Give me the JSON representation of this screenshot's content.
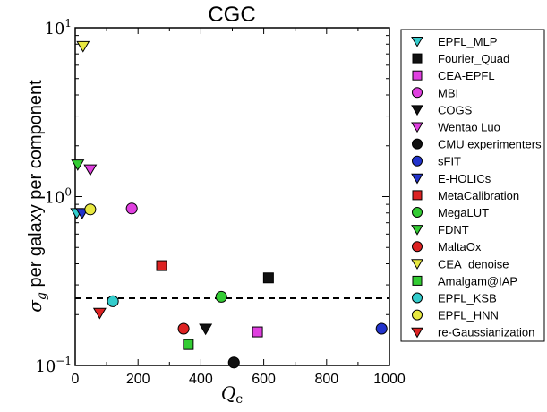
{
  "chart_data": {
    "type": "scatter",
    "title": "CGC",
    "xlabel_symbol": "Q",
    "xlabel_subscript": "c",
    "ylabel_symbol": "σ",
    "ylabel_subscript": "g",
    "ylabel_text": " per galaxy per component",
    "xlim": [
      0,
      1000
    ],
    "ylim": [
      0.1,
      10
    ],
    "yscale": "log",
    "x_ticks": [
      0,
      200,
      400,
      600,
      800,
      1000
    ],
    "x_tick_labels": [
      "0",
      "200",
      "400",
      "600",
      "800",
      "1000"
    ],
    "y_major_ticks": [
      0.1,
      1,
      10
    ],
    "y_tick_labels": [
      {
        "base": "10",
        "exp": "−1"
      },
      {
        "base": "10",
        "exp": "0"
      },
      {
        "base": "10",
        "exp": "1"
      }
    ],
    "reference_line": {
      "y": 0.25,
      "style": "dashed",
      "color": "#000000"
    },
    "grid": false,
    "legend_position": "outside-right",
    "series": [
      {
        "name": "EPFL_MLP",
        "marker": "triangle-down",
        "color": "#33cccc",
        "points": [
          [
            5,
            0.8
          ]
        ]
      },
      {
        "name": "Fourier_Quad",
        "marker": "square",
        "color": "#111111",
        "points": [
          [
            615,
            0.33
          ]
        ]
      },
      {
        "name": "CEA-EPFL",
        "marker": "square",
        "color": "#e040e0",
        "points": [
          [
            580,
            0.158
          ]
        ]
      },
      {
        "name": "MBI",
        "marker": "circle",
        "color": "#e040e0",
        "points": [
          [
            180,
            0.85
          ]
        ]
      },
      {
        "name": "COGS",
        "marker": "triangle-down",
        "color": "#111111",
        "points": [
          [
            415,
            0.165
          ]
        ]
      },
      {
        "name": "Wentao Luo",
        "marker": "triangle-down",
        "color": "#e040e0",
        "points": [
          [
            48,
            1.45
          ]
        ]
      },
      {
        "name": "CMU experimenters",
        "marker": "circle",
        "color": "#111111",
        "points": [
          [
            505,
            0.104
          ]
        ]
      },
      {
        "name": "sFIT",
        "marker": "circle",
        "color": "#2233cc",
        "points": [
          [
            975,
            0.165
          ]
        ]
      },
      {
        "name": "E-HOLICs",
        "marker": "triangle-down",
        "color": "#2233cc",
        "points": [
          [
            22,
            0.8
          ]
        ]
      },
      {
        "name": "MetaCalibration",
        "marker": "square",
        "color": "#dd2222",
        "points": [
          [
            275,
            0.39
          ]
        ]
      },
      {
        "name": "MegaLUT",
        "marker": "circle",
        "color": "#33cc33",
        "points": [
          [
            465,
            0.255
          ]
        ]
      },
      {
        "name": "FDNT",
        "marker": "triangle-down",
        "color": "#33cc33",
        "points": [
          [
            8,
            1.55
          ]
        ]
      },
      {
        "name": "MaltaOx",
        "marker": "circle",
        "color": "#dd2222",
        "points": [
          [
            345,
            0.165
          ]
        ]
      },
      {
        "name": "CEA_denoise",
        "marker": "triangle-down",
        "color": "#e8e840",
        "points": [
          [
            25,
            7.8
          ]
        ]
      },
      {
        "name": "Amalgam@IAP",
        "marker": "square",
        "color": "#33cc33",
        "points": [
          [
            360,
            0.133
          ]
        ]
      },
      {
        "name": "EPFL_KSB",
        "marker": "circle",
        "color": "#33cccc",
        "points": [
          [
            120,
            0.24
          ]
        ]
      },
      {
        "name": "EPFL_HNN",
        "marker": "circle",
        "color": "#e8e840",
        "points": [
          [
            48,
            0.84
          ]
        ]
      },
      {
        "name": "re-Gaussianization",
        "marker": "triangle-down",
        "color": "#dd2222",
        "points": [
          [
            78,
            0.205
          ]
        ]
      }
    ]
  }
}
